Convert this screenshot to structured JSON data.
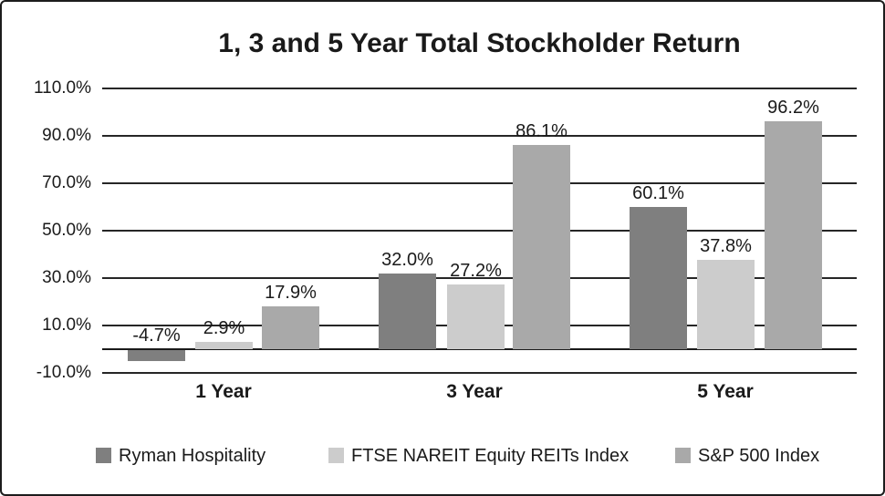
{
  "title": "1, 3 and 5 Year Total Stockholder Return",
  "chart_data": {
    "type": "bar",
    "title": "1, 3 and 5 Year Total Stockholder Return",
    "categories": [
      "1 Year",
      "3 Year",
      "5 Year"
    ],
    "series": [
      {
        "name": "Ryman Hospitality",
        "color": "#7f7f7f",
        "values": [
          -4.7,
          32.0,
          60.1
        ],
        "labels": [
          "-4.7%",
          "32.0%",
          "60.1%"
        ]
      },
      {
        "name": "FTSE NAREIT Equity REITs Index",
        "color": "#cccccc",
        "values": [
          2.9,
          27.2,
          37.8
        ],
        "labels": [
          "2.9%",
          "27.2%",
          "37.8%"
        ]
      },
      {
        "name": "S&P 500 Index",
        "color": "#a9a9a9",
        "values": [
          17.9,
          86.1,
          96.2
        ],
        "labels": [
          "17.9%",
          "86.1%",
          "96.2%"
        ]
      }
    ],
    "ylim": [
      -10,
      110
    ],
    "yticks": [
      {
        "value": 110,
        "label": "110.0%"
      },
      {
        "value": 90,
        "label": "90.0%"
      },
      {
        "value": 70,
        "label": "70.0%"
      },
      {
        "value": 50,
        "label": "50.0%"
      },
      {
        "value": 30,
        "label": "30.0%"
      },
      {
        "value": 10,
        "label": "10.0%"
      },
      {
        "value": -10,
        "label": "-10.0%"
      }
    ],
    "grid": true,
    "legend_position": "bottom"
  }
}
